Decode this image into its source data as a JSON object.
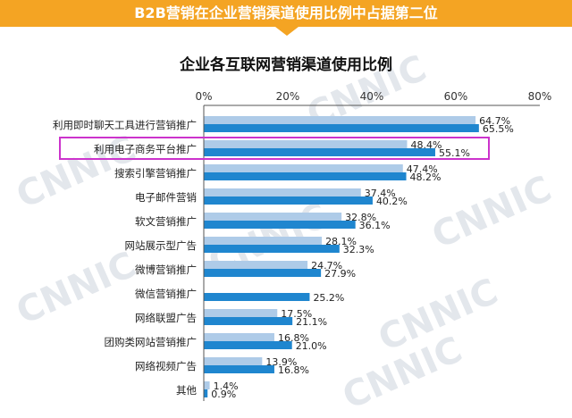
{
  "banner": {
    "title": "B2B营销在企业营销渠道使用比例中占据第二位"
  },
  "watermark": "CNNIC",
  "colors": {
    "banner": "#f4a423",
    "series_a": "#aecbe8",
    "series_b": "#1f86cf",
    "highlight": "#cc33cc",
    "watermark": "#e3e7ec"
  },
  "chart_data": {
    "type": "bar",
    "orientation": "horizontal",
    "title": "企业各互联网营销渠道使用比例",
    "x_ticks": [
      "0%",
      "20%",
      "40%",
      "60%",
      "80%"
    ],
    "xlim": [
      0,
      80
    ],
    "axis_position": "top",
    "grid": false,
    "legend": "none",
    "highlighted_category": "利用电子商务平台推广",
    "categories": [
      "利用即时聊天工具进行营销推广",
      "利用电子商务平台推广",
      "搜索引擎营销推广",
      "电子邮件营销",
      "软文营销推广",
      "网站展示型广告",
      "微博营销推广",
      "微信营销推广",
      "网络联盟广告",
      "团购类网站营销推广",
      "网络视频广告",
      "其他"
    ],
    "series": [
      {
        "values": [
          64.7,
          48.4,
          47.4,
          37.4,
          32.8,
          28.1,
          24.7,
          null,
          17.5,
          16.8,
          13.9,
          1.4
        ],
        "labels": [
          "64.7%",
          "48.4%",
          "47.4%",
          "37.4%",
          "32.8%",
          "28.1%",
          "24.7%",
          "",
          "17.5%",
          "16.8%",
          "13.9%",
          "1.4%"
        ]
      },
      {
        "values": [
          65.5,
          55.1,
          48.2,
          40.2,
          36.1,
          32.3,
          27.9,
          25.2,
          21.1,
          21.0,
          16.8,
          0.9
        ],
        "labels": [
          "65.5%",
          "55.1%",
          "48.2%",
          "40.2%",
          "36.1%",
          "32.3%",
          "27.9%",
          "25.2%",
          "21.1%",
          "21.0%",
          "16.8%",
          "0.9%"
        ]
      }
    ]
  }
}
